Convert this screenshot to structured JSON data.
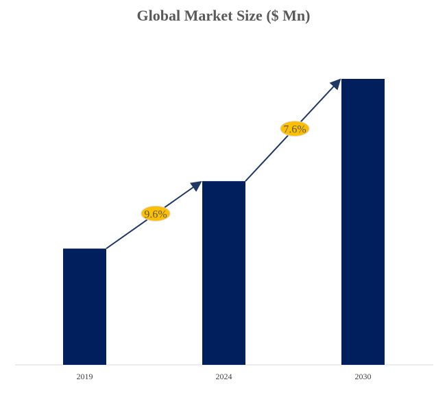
{
  "chart_data": {
    "type": "bar",
    "title": "Global Market Size ($ Mn)",
    "categories": [
      "2019",
      "2024",
      "2030"
    ],
    "values": [
      100,
      158,
      246
    ],
    "value_note": "relative index; no value axis printed",
    "xlabel": "",
    "ylabel": "",
    "grid": false,
    "bar_color": "#001f5c",
    "growth_annotations": [
      {
        "from": "2019",
        "to": "2024",
        "label": "9.6%"
      },
      {
        "from": "2024",
        "to": "2030",
        "label": "7.6%"
      }
    ],
    "annotation_color": "#fdbf00",
    "arrow_color": "#1f3864"
  }
}
